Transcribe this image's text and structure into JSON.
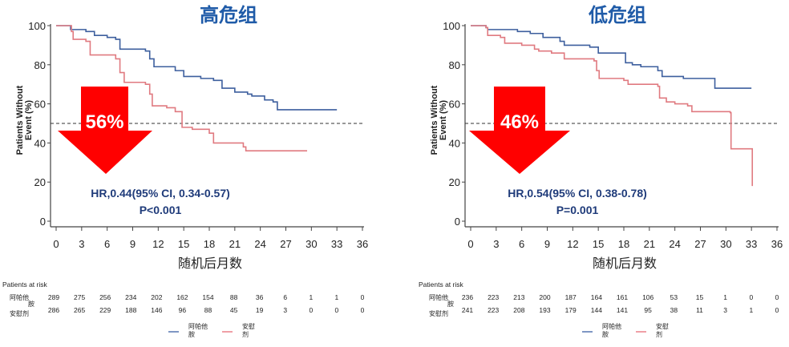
{
  "chart_data": [
    {
      "type": "line",
      "title": "高危组",
      "xlabel": "随机后月数",
      "ylabel_lines": [
        "Patients Without",
        "Event (%)"
      ],
      "xlim": [
        0,
        36
      ],
      "ylim": [
        0,
        100
      ],
      "xticks": [
        "0",
        "3",
        "6",
        "9",
        "12",
        "15",
        "18",
        "21",
        "24",
        "27",
        "30",
        "33",
        "36"
      ],
      "yticks": [
        "0",
        "20",
        "40",
        "60",
        "80",
        "100"
      ],
      "reference_line_y": 50,
      "reduction_label": "56%",
      "hr_text": "HR,0.44(95% CI, 0.34-0.57)",
      "p_text": "P<0.001",
      "series": [
        {
          "name": "阿帕他胺",
          "color": "#3d5f9e",
          "step": [
            [
              0,
              100
            ],
            [
              1.7,
              98
            ],
            [
              3.5,
              97
            ],
            [
              4.5,
              95
            ],
            [
              6,
              94
            ],
            [
              7,
              93
            ],
            [
              7.5,
              88
            ],
            [
              10.5,
              87
            ],
            [
              11,
              83
            ],
            [
              11.5,
              79
            ],
            [
              14,
              77
            ],
            [
              15,
              74
            ],
            [
              17,
              73
            ],
            [
              18.5,
              72
            ],
            [
              19.5,
              68
            ],
            [
              21,
              66
            ],
            [
              22.5,
              65
            ],
            [
              23,
              64
            ],
            [
              24.5,
              62
            ],
            [
              25.5,
              61
            ],
            [
              26,
              57
            ],
            [
              33,
              57
            ]
          ]
        },
        {
          "name": "安慰剂",
          "color": "#e07a80",
          "step": [
            [
              0,
              100
            ],
            [
              1.8,
              97
            ],
            [
              2,
              93
            ],
            [
              3.5,
              92
            ],
            [
              4,
              85
            ],
            [
              7,
              83
            ],
            [
              7.5,
              76
            ],
            [
              8,
              71
            ],
            [
              10.5,
              70
            ],
            [
              11,
              65
            ],
            [
              11.3,
              59
            ],
            [
              13,
              58
            ],
            [
              14,
              56
            ],
            [
              14.8,
              48
            ],
            [
              16,
              47
            ],
            [
              18,
              45
            ],
            [
              18.5,
              40
            ],
            [
              22,
              38
            ],
            [
              22.3,
              36
            ],
            [
              29.5,
              36
            ]
          ]
        }
      ],
      "risk_table": {
        "heading": "Patients at risk",
        "rows": [
          {
            "label_lines": [
              "阿帕他",
              "胺"
            ],
            "values": [
              "289",
              "275",
              "256",
              "234",
              "202",
              "162",
              "154",
              "88",
              "36",
              "6",
              "1",
              "1",
              "0"
            ]
          },
          {
            "label_lines": [
              "安慰剂"
            ],
            "values": [
              "286",
              "265",
              "229",
              "188",
              "146",
              "96",
              "88",
              "45",
              "19",
              "3",
              "0",
              "0",
              "0"
            ]
          }
        ]
      },
      "legend": [
        {
          "label_lines": [
            "阿帕他",
            "胺"
          ],
          "color": "#7f97c4"
        },
        {
          "label_lines": [
            "安慰",
            "剂"
          ],
          "color": "#f0a0a6"
        }
      ]
    },
    {
      "type": "line",
      "title": "低危组",
      "xlabel": "随机后月数",
      "ylabel_lines": [
        "Patients Without",
        "Event (%)"
      ],
      "xlim": [
        0,
        36
      ],
      "ylim": [
        0,
        100
      ],
      "xticks": [
        "0",
        "3",
        "6",
        "9",
        "12",
        "15",
        "18",
        "21",
        "24",
        "27",
        "30",
        "33",
        "36"
      ],
      "yticks": [
        "0",
        "20",
        "40",
        "60",
        "80",
        "100"
      ],
      "reference_line_y": 50,
      "reduction_label": "46%",
      "hr_text": "HR,0.54(95% CI, 0.38-0.78)",
      "p_text": "P=0.001",
      "series": [
        {
          "name": "阿帕他胺",
          "color": "#3d5f9e",
          "step": [
            [
              0,
              100
            ],
            [
              1.8,
              99
            ],
            [
              2,
              98
            ],
            [
              5.5,
              97
            ],
            [
              7,
              96
            ],
            [
              8.5,
              94
            ],
            [
              10.5,
              92
            ],
            [
              11,
              90
            ],
            [
              14,
              89
            ],
            [
              15,
              86
            ],
            [
              18,
              86
            ],
            [
              18.2,
              81
            ],
            [
              19,
              80
            ],
            [
              20,
              79
            ],
            [
              22,
              77
            ],
            [
              22.5,
              74
            ],
            [
              25,
              73
            ],
            [
              28.5,
              73
            ],
            [
              28.7,
              68
            ],
            [
              33,
              68
            ]
          ]
        },
        {
          "name": "安慰剂",
          "color": "#e07a80",
          "step": [
            [
              0,
              100
            ],
            [
              1.8,
              99
            ],
            [
              2,
              95
            ],
            [
              3.5,
              94
            ],
            [
              4,
              91
            ],
            [
              6,
              90
            ],
            [
              7.5,
              88
            ],
            [
              8,
              87
            ],
            [
              9.5,
              86
            ],
            [
              11,
              83
            ],
            [
              14.5,
              82
            ],
            [
              14.8,
              77
            ],
            [
              15.1,
              73
            ],
            [
              18,
              72
            ],
            [
              18.5,
              70
            ],
            [
              22,
              69
            ],
            [
              22.2,
              63
            ],
            [
              23,
              61
            ],
            [
              24,
              60
            ],
            [
              25.5,
              59
            ],
            [
              26,
              56
            ],
            [
              30.5,
              55.5
            ],
            [
              30.6,
              37
            ],
            [
              33,
              37
            ],
            [
              33.1,
              18
            ]
          ]
        }
      ],
      "risk_table": {
        "heading": "Patients at risk",
        "rows": [
          {
            "label_lines": [
              "阿帕他",
              "胺"
            ],
            "values": [
              "236",
              "223",
              "213",
              "200",
              "187",
              "164",
              "161",
              "106",
              "53",
              "15",
              "1",
              "0",
              "0"
            ]
          },
          {
            "label_lines": [
              "安慰剂"
            ],
            "values": [
              "241",
              "223",
              "208",
              "193",
              "179",
              "144",
              "141",
              "95",
              "38",
              "11",
              "3",
              "1",
              "0"
            ]
          }
        ]
      },
      "legend": [
        {
          "label_lines": [
            "阿帕他",
            "胺"
          ],
          "color": "#7f97c4"
        },
        {
          "label_lines": [
            "安慰",
            "剂"
          ],
          "color": "#f0a0a6"
        }
      ]
    }
  ]
}
